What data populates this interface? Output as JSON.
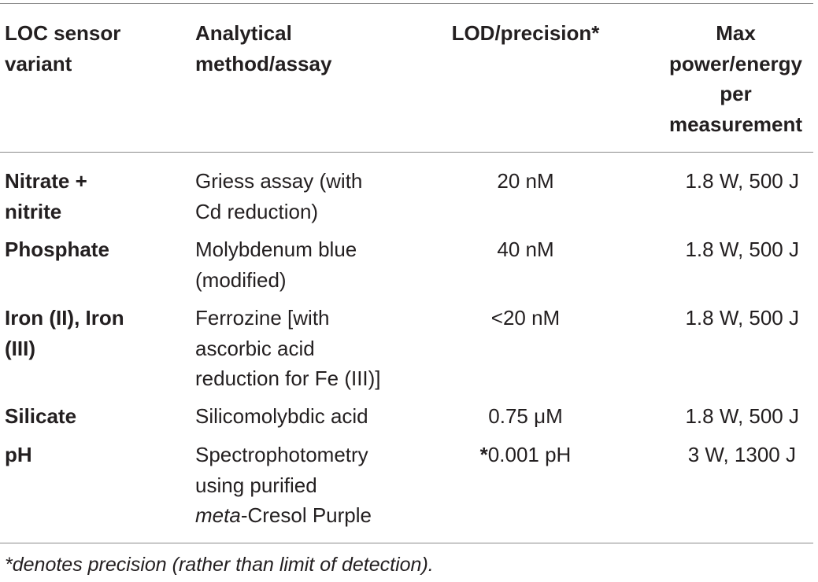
{
  "table": {
    "headers": {
      "col1": [
        "LOC sensor",
        "variant"
      ],
      "col2": [
        "Analytical",
        "method/assay"
      ],
      "col3": [
        "LOD/precision*"
      ],
      "col4": [
        "Max",
        "power/energy",
        "per",
        "measurement"
      ]
    },
    "rows": [
      {
        "variant": [
          "Nitrate +",
          "nitrite"
        ],
        "method": [
          "Griess assay (with",
          "Cd reduction)"
        ],
        "lod": "20 nM",
        "power": "1.8 W, 500 J"
      },
      {
        "variant": [
          "Phosphate"
        ],
        "method": [
          "Molybdenum blue",
          "(modified)"
        ],
        "lod": "40 nM",
        "power": "1.8 W, 500 J"
      },
      {
        "variant": [
          "Iron (II), Iron",
          "(III)"
        ],
        "method": [
          "Ferrozine [with",
          "ascorbic acid",
          "reduction for Fe (III)]"
        ],
        "lod": "<20 nM",
        "power": "1.8 W, 500 J"
      },
      {
        "variant": [
          "Silicate"
        ],
        "method": [
          "Silicomolybdic acid"
        ],
        "lod": "0.75 μM",
        "power": "1.8 W, 500 J"
      },
      {
        "variant": [
          "pH"
        ],
        "method": [
          "Spectrophotometry",
          "using purified",
          "meta",
          "-Cresol Purple"
        ],
        "lod_star": "*",
        "lod": "0.001 pH",
        "power": "3 W, 1300 J"
      }
    ]
  },
  "footnote": "*denotes precision (rather than limit of detection)."
}
